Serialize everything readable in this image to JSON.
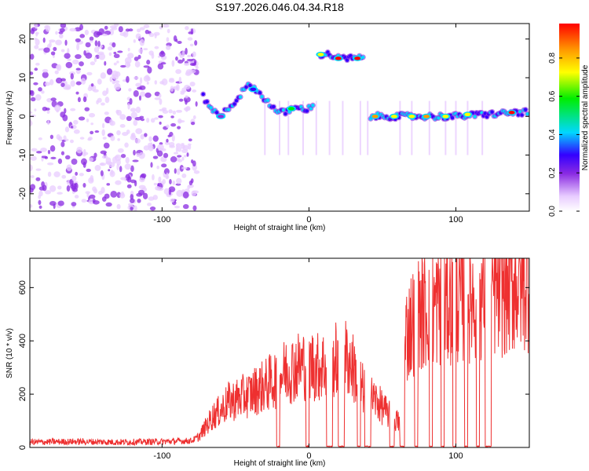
{
  "title": "S197.2026.046.04.34.R18",
  "colors": {
    "snr_line": "#ee3030",
    "axis": "#000000",
    "colormap": [
      "#ffffff",
      "#e8ccff",
      "#8a2be2",
      "#3300ff",
      "#00d8ff",
      "#00ee00",
      "#ffff00",
      "#ff9900",
      "#ff0000"
    ]
  },
  "chart_data": [
    {
      "type": "heatmap",
      "title": "S197.2026.046.04.34.R18",
      "xlabel": "Height of straight line (km)",
      "ylabel": "Frequency (Hz)",
      "xlim": [
        -190,
        150
      ],
      "ylim": [
        -24.5,
        24
      ],
      "xticks": [
        -100,
        0,
        100
      ],
      "xtick_labels": [
        "-100",
        "0",
        "100"
      ],
      "yticks": [
        -20,
        -10,
        0,
        10,
        20
      ],
      "ytick_labels": [
        "-20",
        "-10",
        "0",
        "10",
        "20"
      ],
      "noise_region": {
        "x": [
          -190,
          -76
        ],
        "y": [
          -24,
          24
        ],
        "description": "scattered low-amplitude noise"
      },
      "signal_track": [
        {
          "x": -72,
          "y": 5
        },
        {
          "x": -68,
          "y": 3
        },
        {
          "x": -64,
          "y": 1
        },
        {
          "x": -60,
          "y": 0
        },
        {
          "x": -56,
          "y": 2
        },
        {
          "x": -52,
          "y": 3
        },
        {
          "x": -48,
          "y": 5
        },
        {
          "x": -44,
          "y": 7
        },
        {
          "x": -40,
          "y": 8
        },
        {
          "x": -36,
          "y": 7
        },
        {
          "x": -32,
          "y": 5
        },
        {
          "x": -28,
          "y": 4
        },
        {
          "x": -24,
          "y": 2
        },
        {
          "x": -20,
          "y": 1
        },
        {
          "x": -16,
          "y": 1
        },
        {
          "x": -12,
          "y": 2
        },
        {
          "x": -8,
          "y": 2
        },
        {
          "x": -4,
          "y": 2
        },
        {
          "x": 0,
          "y": 2
        },
        {
          "x": 4,
          "y": 3
        },
        {
          "x": 8,
          "y": 16
        },
        {
          "x": 14,
          "y": 16
        },
        {
          "x": 20,
          "y": 15
        },
        {
          "x": 26,
          "y": 15
        },
        {
          "x": 32,
          "y": 15
        },
        {
          "x": 38,
          "y": 15
        },
        {
          "x": 42,
          "y": 0
        },
        {
          "x": 60,
          "y": 0
        },
        {
          "x": 80,
          "y": 0
        },
        {
          "x": 100,
          "y": 0
        },
        {
          "x": 120,
          "y": 0.5
        },
        {
          "x": 140,
          "y": 1
        },
        {
          "x": 150,
          "y": 1
        }
      ],
      "hot_spots": [
        {
          "x": -60,
          "y": 0,
          "amp": 0.3
        },
        {
          "x": -38,
          "y": 7,
          "amp": 0.35
        },
        {
          "x": -12,
          "y": 2,
          "amp": 0.6
        },
        {
          "x": 8,
          "y": 16,
          "amp": 0.7
        },
        {
          "x": 20,
          "y": 15,
          "amp": 0.95
        },
        {
          "x": 33,
          "y": 15,
          "amp": 0.95
        },
        {
          "x": 45,
          "y": 0,
          "amp": 0.85
        },
        {
          "x": 58,
          "y": 0,
          "amp": 0.8
        },
        {
          "x": 70,
          "y": 0,
          "amp": 0.8
        },
        {
          "x": 80,
          "y": 0,
          "amp": 0.85
        },
        {
          "x": 93,
          "y": 0,
          "amp": 0.8
        },
        {
          "x": 108,
          "y": 0.5,
          "amp": 0.75
        },
        {
          "x": 138,
          "y": 1,
          "amp": 0.95
        }
      ],
      "colorbar": {
        "label": "Normalized spectral amplitude",
        "range": [
          0,
          0.98
        ],
        "ticks": [
          0.0,
          0.2,
          0.4,
          0.6,
          0.8
        ],
        "tick_labels": [
          "0.0",
          "0.2",
          "0.4",
          "0.6",
          "0.8"
        ]
      }
    },
    {
      "type": "line",
      "xlabel": "Height of straight line (km)",
      "ylabel": "SNR (10 * v/v)",
      "xlim": [
        -190,
        150
      ],
      "ylim": [
        0,
        710
      ],
      "xticks": [
        -100,
        0,
        100
      ],
      "xtick_labels": [
        "-100",
        "0",
        "100"
      ],
      "yticks": [
        0,
        200,
        400,
        600
      ],
      "ytick_labels": [
        "0",
        "200",
        "400",
        "600"
      ],
      "series": [
        {
          "name": "SNR",
          "x": [
            -190,
            -160,
            -130,
            -100,
            -80,
            -75,
            -70,
            -65,
            -60,
            -55,
            -50,
            -45,
            -40,
            -35,
            -30,
            -25,
            -20,
            -15,
            -10,
            -5,
            0,
            5,
            10,
            15,
            20,
            25,
            30,
            35,
            40,
            45,
            50,
            55,
            60,
            62,
            64,
            66,
            70,
            75,
            80,
            85,
            90,
            95,
            100,
            105,
            110,
            115,
            120,
            125,
            130,
            135,
            140,
            145,
            150
          ],
          "values": [
            20,
            22,
            20,
            22,
            25,
            40,
            80,
            120,
            140,
            170,
            180,
            190,
            200,
            220,
            230,
            250,
            270,
            290,
            300,
            310,
            320,
            300,
            310,
            320,
            330,
            340,
            300,
            230,
            200,
            180,
            150,
            120,
            100,
            90,
            160,
            420,
            470,
            500,
            520,
            530,
            540,
            550,
            560,
            565,
            570,
            575,
            580,
            590,
            600,
            610,
            620,
            630,
            640
          ],
          "dropouts": [
            {
              "x": [
                -22,
                -20
              ]
            },
            {
              "x": [
                -2,
                0
              ]
            },
            {
              "x": [
                12,
                16
              ]
            },
            {
              "x": [
                20,
                24
              ]
            },
            {
              "x": [
                33,
                35
              ]
            },
            {
              "x": [
                38,
                42
              ]
            },
            {
              "x": [
                55,
                58
              ]
            },
            {
              "x": [
                62,
                65
              ]
            },
            {
              "x": [
                72,
                74
              ]
            },
            {
              "x": [
                82,
                84
              ]
            },
            {
              "x": [
                90,
                92
              ]
            },
            {
              "x": [
                98,
                100
              ]
            },
            {
              "x": [
                106,
                108
              ]
            },
            {
              "x": [
                114,
                116
              ]
            },
            {
              "x": [
                120,
                124
              ]
            }
          ]
        }
      ]
    }
  ]
}
